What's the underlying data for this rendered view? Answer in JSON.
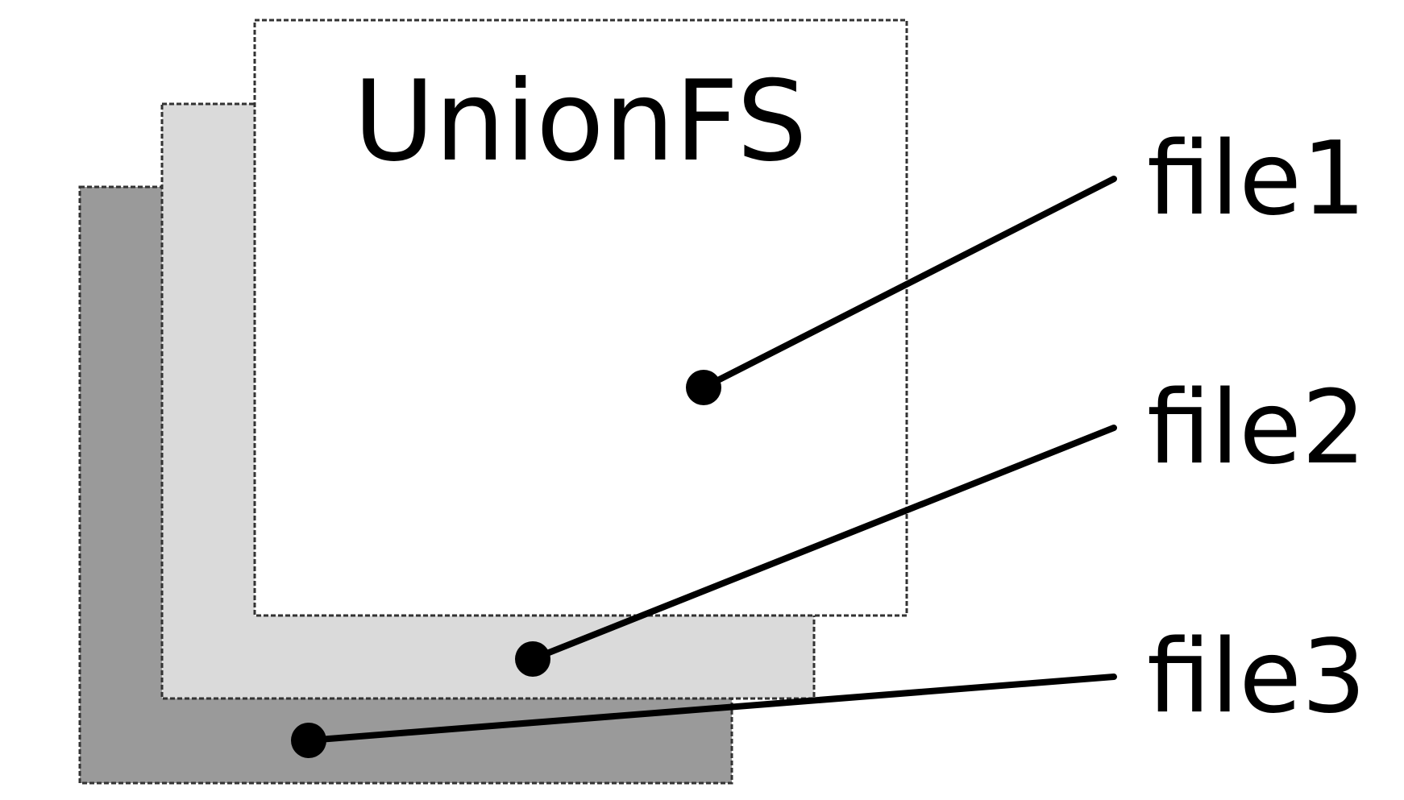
{
  "diagram": {
    "title": "UnionFS",
    "colors": {
      "layer_back": "#9a9a9a",
      "layer_middle": "#dadada",
      "layer_front": "#ffffff",
      "stroke": "#000000"
    },
    "files": [
      {
        "label": "file1"
      },
      {
        "label": "file2"
      },
      {
        "label": "file3"
      }
    ]
  }
}
